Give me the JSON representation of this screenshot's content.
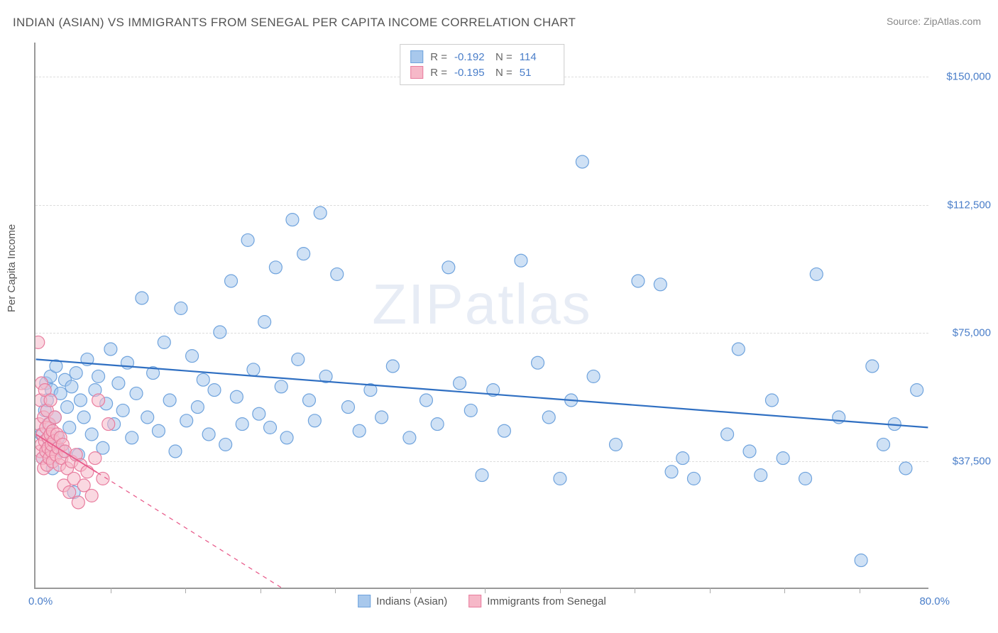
{
  "title": "INDIAN (ASIAN) VS IMMIGRANTS FROM SENEGAL PER CAPITA INCOME CORRELATION CHART",
  "source_label": "Source: ",
  "source_name": "ZipAtlas.com",
  "y_axis_label": "Per Capita Income",
  "watermark": {
    "left": "ZIP",
    "right": "atlas"
  },
  "chart": {
    "type": "scatter",
    "background_color": "#ffffff",
    "grid_color": "#dddddd",
    "axis_color": "#999999",
    "x": {
      "min": 0.0,
      "max": 80.0,
      "min_label": "0.0%",
      "max_label": "80.0%",
      "tick_step_pct": 6.7
    },
    "y": {
      "min": 0,
      "max": 160000,
      "ticks": [
        {
          "value": 37500,
          "label": "$37,500"
        },
        {
          "value": 75000,
          "label": "$75,000"
        },
        {
          "value": 112500,
          "label": "$112,500"
        },
        {
          "value": 150000,
          "label": "$150,000"
        }
      ]
    },
    "series": [
      {
        "name": "Indians (Asian)",
        "fill": "#a8c8ec",
        "stroke": "#6fa3dd",
        "fill_opacity": 0.55,
        "marker_radius": 9,
        "trend": {
          "y_at_xmin": 67000,
          "y_at_xmax": 47000,
          "color": "#2f6fc2",
          "width": 2.2,
          "dash": null
        },
        "points": [
          [
            0.5,
            45000
          ],
          [
            0.6,
            38000
          ],
          [
            0.8,
            52000
          ],
          [
            0.9,
            60000
          ],
          [
            1.0,
            55000
          ],
          [
            1.1,
            48000
          ],
          [
            1.2,
            42000
          ],
          [
            1.3,
            62000
          ],
          [
            1.4,
            58000
          ],
          [
            1.5,
            35000
          ],
          [
            1.7,
            50000
          ],
          [
            1.8,
            65000
          ],
          [
            2.0,
            44000
          ],
          [
            2.2,
            57000
          ],
          [
            2.4,
            40000
          ],
          [
            2.6,
            61000
          ],
          [
            2.8,
            53000
          ],
          [
            3.0,
            47000
          ],
          [
            3.2,
            59000
          ],
          [
            3.4,
            28000
          ],
          [
            3.6,
            63000
          ],
          [
            3.8,
            39000
          ],
          [
            4.0,
            55000
          ],
          [
            4.3,
            50000
          ],
          [
            4.6,
            67000
          ],
          [
            5.0,
            45000
          ],
          [
            5.3,
            58000
          ],
          [
            5.6,
            62000
          ],
          [
            6.0,
            41000
          ],
          [
            6.3,
            54000
          ],
          [
            6.7,
            70000
          ],
          [
            7.0,
            48000
          ],
          [
            7.4,
            60000
          ],
          [
            7.8,
            52000
          ],
          [
            8.2,
            66000
          ],
          [
            8.6,
            44000
          ],
          [
            9.0,
            57000
          ],
          [
            9.5,
            85000
          ],
          [
            10.0,
            50000
          ],
          [
            10.5,
            63000
          ],
          [
            11.0,
            46000
          ],
          [
            11.5,
            72000
          ],
          [
            12.0,
            55000
          ],
          [
            12.5,
            40000
          ],
          [
            13.0,
            82000
          ],
          [
            13.5,
            49000
          ],
          [
            14.0,
            68000
          ],
          [
            14.5,
            53000
          ],
          [
            15.0,
            61000
          ],
          [
            15.5,
            45000
          ],
          [
            16.0,
            58000
          ],
          [
            16.5,
            75000
          ],
          [
            17.0,
            42000
          ],
          [
            17.5,
            90000
          ],
          [
            18.0,
            56000
          ],
          [
            18.5,
            48000
          ],
          [
            19.0,
            102000
          ],
          [
            19.5,
            64000
          ],
          [
            20.0,
            51000
          ],
          [
            20.5,
            78000
          ],
          [
            21.0,
            47000
          ],
          [
            21.5,
            94000
          ],
          [
            22.0,
            59000
          ],
          [
            22.5,
            44000
          ],
          [
            23.0,
            108000
          ],
          [
            23.5,
            67000
          ],
          [
            24.0,
            98000
          ],
          [
            24.5,
            55000
          ],
          [
            25.0,
            49000
          ],
          [
            25.5,
            110000
          ],
          [
            26.0,
            62000
          ],
          [
            27.0,
            92000
          ],
          [
            28.0,
            53000
          ],
          [
            29.0,
            46000
          ],
          [
            30.0,
            58000
          ],
          [
            31.0,
            50000
          ],
          [
            32.0,
            65000
          ],
          [
            33.5,
            44000
          ],
          [
            35.0,
            55000
          ],
          [
            36.0,
            48000
          ],
          [
            37.0,
            94000
          ],
          [
            38.0,
            60000
          ],
          [
            39.0,
            52000
          ],
          [
            40.0,
            33000
          ],
          [
            41.0,
            58000
          ],
          [
            42.0,
            46000
          ],
          [
            43.5,
            96000
          ],
          [
            45.0,
            66000
          ],
          [
            46.0,
            50000
          ],
          [
            47.0,
            32000
          ],
          [
            48.0,
            55000
          ],
          [
            49.0,
            125000
          ],
          [
            50.0,
            62000
          ],
          [
            52.0,
            42000
          ],
          [
            54.0,
            90000
          ],
          [
            56.0,
            89000
          ],
          [
            57.0,
            34000
          ],
          [
            58.0,
            38000
          ],
          [
            59.0,
            32000
          ],
          [
            62.0,
            45000
          ],
          [
            63.0,
            70000
          ],
          [
            64.0,
            40000
          ],
          [
            65.0,
            33000
          ],
          [
            66.0,
            55000
          ],
          [
            67.0,
            38000
          ],
          [
            69.0,
            32000
          ],
          [
            70.0,
            92000
          ],
          [
            72.0,
            50000
          ],
          [
            74.0,
            8000
          ],
          [
            75.0,
            65000
          ],
          [
            76.0,
            42000
          ],
          [
            77.0,
            48000
          ],
          [
            78.0,
            35000
          ],
          [
            79.0,
            58000
          ]
        ]
      },
      {
        "name": "Immigrants from Senegal",
        "fill": "#f6b8c8",
        "stroke": "#e87c9e",
        "fill_opacity": 0.55,
        "marker_radius": 9,
        "trend": {
          "y_at_xmin": 45000,
          "y_at_xmax_extrap": 0,
          "x_intercept": 22.0,
          "color": "#e85a8a",
          "width": 1.8,
          "solid_until_x": 5.5,
          "dash": "6,6"
        },
        "points": [
          [
            0.2,
            72000
          ],
          [
            0.3,
            48000
          ],
          [
            0.4,
            40000
          ],
          [
            0.4,
            55000
          ],
          [
            0.5,
            42000
          ],
          [
            0.5,
            60000
          ],
          [
            0.6,
            38000
          ],
          [
            0.6,
            45000
          ],
          [
            0.7,
            50000
          ],
          [
            0.7,
            35000
          ],
          [
            0.8,
            43000
          ],
          [
            0.8,
            58000
          ],
          [
            0.9,
            40000
          ],
          [
            0.9,
            47000
          ],
          [
            1.0,
            52000
          ],
          [
            1.0,
            36000
          ],
          [
            1.1,
            44000
          ],
          [
            1.1,
            41000
          ],
          [
            1.2,
            48000
          ],
          [
            1.2,
            38000
          ],
          [
            1.3,
            45000
          ],
          [
            1.3,
            55000
          ],
          [
            1.4,
            40000
          ],
          [
            1.4,
            42000
          ],
          [
            1.5,
            46000
          ],
          [
            1.5,
            37000
          ],
          [
            1.6,
            43000
          ],
          [
            1.7,
            50000
          ],
          [
            1.8,
            39000
          ],
          [
            1.9,
            45000
          ],
          [
            2.0,
            41000
          ],
          [
            2.1,
            36000
          ],
          [
            2.2,
            44000
          ],
          [
            2.3,
            38000
          ],
          [
            2.4,
            42000
          ],
          [
            2.5,
            30000
          ],
          [
            2.6,
            40000
          ],
          [
            2.8,
            35000
          ],
          [
            3.0,
            28000
          ],
          [
            3.2,
            37000
          ],
          [
            3.4,
            32000
          ],
          [
            3.6,
            39000
          ],
          [
            3.8,
            25000
          ],
          [
            4.0,
            36000
          ],
          [
            4.3,
            30000
          ],
          [
            4.6,
            34000
          ],
          [
            5.0,
            27000
          ],
          [
            5.3,
            38000
          ],
          [
            5.6,
            55000
          ],
          [
            6.0,
            32000
          ],
          [
            6.5,
            48000
          ]
        ]
      }
    ],
    "stats": [
      {
        "swatch_fill": "#a8c8ec",
        "swatch_stroke": "#6fa3dd",
        "r_label": "R =",
        "r": "-0.192",
        "n_label": "N =",
        "n": "114"
      },
      {
        "swatch_fill": "#f6b8c8",
        "swatch_stroke": "#e87c9e",
        "r_label": "R =",
        "r": "-0.195",
        "n_label": "N =",
        "n": "51"
      }
    ],
    "legend_bottom": [
      {
        "swatch_fill": "#a8c8ec",
        "swatch_stroke": "#6fa3dd",
        "label": "Indians (Asian)"
      },
      {
        "swatch_fill": "#f6b8c8",
        "swatch_stroke": "#e87c9e",
        "label": "Immigrants from Senegal"
      }
    ]
  }
}
